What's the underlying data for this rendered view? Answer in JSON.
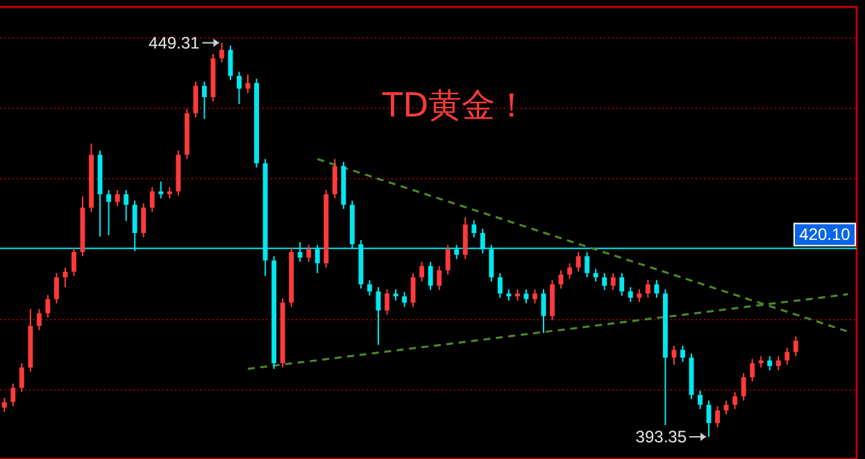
{
  "chart_data": {
    "type": "candlestick",
    "title": "TD黄金！",
    "categories": [
      null,
      null,
      null,
      null,
      null,
      null,
      null,
      null,
      null,
      null,
      null,
      null,
      null,
      null,
      null,
      null,
      null,
      null,
      null,
      null,
      null,
      null,
      null,
      null,
      null,
      null,
      null,
      null,
      null,
      null,
      null,
      null,
      null,
      null,
      null,
      null,
      null,
      null,
      null,
      null,
      null,
      null,
      null,
      null,
      null,
      null,
      null,
      null,
      null,
      null,
      null,
      null,
      null,
      null,
      null,
      null,
      null,
      null,
      null,
      null,
      null,
      null,
      null,
      null,
      null,
      null,
      null,
      null,
      null,
      null,
      null,
      null,
      null,
      null,
      null,
      null,
      null,
      null,
      null,
      null,
      null,
      null,
      null,
      null,
      null,
      null,
      null,
      null,
      null,
      null,
      null,
      null,
      null,
      null,
      null,
      null,
      null,
      null
    ],
    "ohlc": [
      [
        397.5,
        398.9,
        396.9,
        398.3
      ],
      [
        398.3,
        400.9,
        397.7,
        400.3
      ],
      [
        400.3,
        403.8,
        399.7,
        403.2
      ],
      [
        403.2,
        411.5,
        402.6,
        409.1
      ],
      [
        409.1,
        411.5,
        408.5,
        410.9
      ],
      [
        410.9,
        413.5,
        410.3,
        412.9
      ],
      [
        412.9,
        416.6,
        412.3,
        416.0
      ],
      [
        416.0,
        417.4,
        414.6,
        416.8
      ],
      [
        416.8,
        420.2,
        416.2,
        419.6
      ],
      [
        419.6,
        427.5,
        419.0,
        425.9
      ],
      [
        425.9,
        435.0,
        425.3,
        433.4
      ],
      [
        433.4,
        434.0,
        421.8,
        427.8
      ],
      [
        427.8,
        428.4,
        422.0,
        426.7
      ],
      [
        426.7,
        428.4,
        426.1,
        427.8
      ],
      [
        427.8,
        428.4,
        424.0,
        426.3
      ],
      [
        426.3,
        426.9,
        419.7,
        422.3
      ],
      [
        422.3,
        426.5,
        421.7,
        425.9
      ],
      [
        425.9,
        428.8,
        425.3,
        428.2
      ],
      [
        428.2,
        429.6,
        427.2,
        427.8
      ],
      [
        427.8,
        428.8,
        427.2,
        428.2
      ],
      [
        428.2,
        434.0,
        427.6,
        433.4
      ],
      [
        433.4,
        439.9,
        432.8,
        439.3
      ],
      [
        439.3,
        443.8,
        438.7,
        443.2
      ],
      [
        443.2,
        443.8,
        438.5,
        441.6
      ],
      [
        441.6,
        447.7,
        441.0,
        447.1
      ],
      [
        447.1,
        449.31,
        446.5,
        448.3
      ],
      [
        448.3,
        448.9,
        444.0,
        444.6
      ],
      [
        444.6,
        445.2,
        440.6,
        442.8
      ],
      [
        442.8,
        444.8,
        442.2,
        443.6
      ],
      [
        443.6,
        444.2,
        431.6,
        432.2
      ],
      [
        432.2,
        432.8,
        416.2,
        418.4
      ],
      [
        418.4,
        419.0,
        403.0,
        403.8
      ],
      [
        403.8,
        413.0,
        403.2,
        412.4
      ],
      [
        412.4,
        420.2,
        411.8,
        419.6
      ],
      [
        419.6,
        421.0,
        418.2,
        418.8
      ],
      [
        418.8,
        420.6,
        418.2,
        420.0
      ],
      [
        420.0,
        420.6,
        416.6,
        418.0
      ],
      [
        418.0,
        428.4,
        417.4,
        427.8
      ],
      [
        427.8,
        432.8,
        427.2,
        431.8
      ],
      [
        431.8,
        432.4,
        425.7,
        426.3
      ],
      [
        426.3,
        426.9,
        420.1,
        420.7
      ],
      [
        420.7,
        421.3,
        414.4,
        415.0
      ],
      [
        415.0,
        415.6,
        413.4,
        414.0
      ],
      [
        414.0,
        414.6,
        406.4,
        411.3
      ],
      [
        411.3,
        414.3,
        410.7,
        413.7
      ],
      [
        413.7,
        414.3,
        412.7,
        413.3
      ],
      [
        413.3,
        413.9,
        411.8,
        412.4
      ],
      [
        412.4,
        416.6,
        411.8,
        416.0
      ],
      [
        416.0,
        418.2,
        415.4,
        417.6
      ],
      [
        417.6,
        418.2,
        414.2,
        414.8
      ],
      [
        414.8,
        417.6,
        414.2,
        417.0
      ],
      [
        417.0,
        420.6,
        416.4,
        420.0
      ],
      [
        420.0,
        420.6,
        418.6,
        419.2
      ],
      [
        419.2,
        424.5,
        418.6,
        423.5
      ],
      [
        423.5,
        424.1,
        421.7,
        422.3
      ],
      [
        422.3,
        422.9,
        419.4,
        420.0
      ],
      [
        420.0,
        420.6,
        415.4,
        416.0
      ],
      [
        416.0,
        416.6,
        413.1,
        413.7
      ],
      [
        413.7,
        414.3,
        412.7,
        413.3
      ],
      [
        413.3,
        414.3,
        412.7,
        413.7
      ],
      [
        413.7,
        414.3,
        412.3,
        412.9
      ],
      [
        412.9,
        414.3,
        412.3,
        413.7
      ],
      [
        413.7,
        414.3,
        408.1,
        410.5
      ],
      [
        410.5,
        415.6,
        409.9,
        415.0
      ],
      [
        415.0,
        417.0,
        414.4,
        416.4
      ],
      [
        416.4,
        418.0,
        415.8,
        417.4
      ],
      [
        417.4,
        419.6,
        416.8,
        419.0
      ],
      [
        419.0,
        419.6,
        416.0,
        416.6
      ],
      [
        416.6,
        417.2,
        415.4,
        416.0
      ],
      [
        416.0,
        416.6,
        414.2,
        414.8
      ],
      [
        414.8,
        416.6,
        414.2,
        416.0
      ],
      [
        416.0,
        416.6,
        413.4,
        414.0
      ],
      [
        414.0,
        414.6,
        412.5,
        413.1
      ],
      [
        413.1,
        414.3,
        412.5,
        413.7
      ],
      [
        413.7,
        415.6,
        413.1,
        415.0
      ],
      [
        415.0,
        415.6,
        413.1,
        413.7
      ],
      [
        413.7,
        414.3,
        395.0,
        404.6
      ],
      [
        404.6,
        406.3,
        403.6,
        405.7
      ],
      [
        405.7,
        406.3,
        404.0,
        404.6
      ],
      [
        404.6,
        405.2,
        398.7,
        399.3
      ],
      [
        399.3,
        399.9,
        397.3,
        397.9
      ],
      [
        397.9,
        398.5,
        393.35,
        395.3
      ],
      [
        395.3,
        397.7,
        394.7,
        397.1
      ],
      [
        397.1,
        398.5,
        396.5,
        397.9
      ],
      [
        397.9,
        399.7,
        397.3,
        399.1
      ],
      [
        399.1,
        402.4,
        398.5,
        401.8
      ],
      [
        401.8,
        404.4,
        401.2,
        403.8
      ],
      [
        403.8,
        404.8,
        403.2,
        404.2
      ],
      [
        404.2,
        404.8,
        402.8,
        403.4
      ],
      [
        403.4,
        404.8,
        402.8,
        404.2
      ],
      [
        404.2,
        406.0,
        403.6,
        405.4
      ],
      [
        405.4,
        407.6,
        404.8,
        407.0
      ],
      null,
      null,
      null,
      null,
      null,
      null
    ],
    "colors": [
      "#ff3b3b",
      "#ff3b3b",
      "#ff3b3b",
      "#ff3b3b",
      "#ff3b3b",
      "#ff3b3b",
      "#ff3b3b",
      "#ff3b3b",
      "#ff3b3b",
      "#ff3b3b",
      "#ff3b3b",
      "#00e8f0",
      "#00e8f0",
      "#ff3b3b",
      "#00e8f0",
      "#00e8f0",
      "#ff3b3b",
      "#ff3b3b",
      "#00e8f0",
      "#ff3b3b",
      "#ff3b3b",
      "#ff3b3b",
      "#ff3b3b",
      "#00e8f0",
      "#ff3b3b",
      "#ff3b3b",
      "#00e8f0",
      "#00e8f0",
      "#ff3b3b",
      "#00e8f0",
      "#00e8f0",
      "#00e8f0",
      "#ff3b3b",
      "#ff3b3b",
      "#00e8f0",
      "#ff3b3b",
      "#00e8f0",
      "#ff3b3b",
      "#ff3b3b",
      "#00e8f0",
      "#00e8f0",
      "#00e8f0",
      "#00e8f0",
      "#00e8f0",
      "#ff3b3b",
      "#00e8f0",
      "#00e8f0",
      "#ff3b3b",
      "#ff3b3b",
      "#00e8f0",
      "#ff3b3b",
      "#ff3b3b",
      "#00e8f0",
      "#ff3b3b",
      "#00e8f0",
      "#00e8f0",
      "#00e8f0",
      "#00e8f0",
      "#00e8f0",
      "#ff3b3b",
      "#00e8f0",
      "#ff3b3b",
      "#00e8f0",
      "#ff3b3b",
      "#ff3b3b",
      "#ff3b3b",
      "#ff3b3b",
      "#00e8f0",
      "#00e8f0",
      "#00e8f0",
      "#ff3b3b",
      "#00e8f0",
      "#00e8f0",
      "#ff3b3b",
      "#ff3b3b",
      "#00e8f0",
      "#00e8f0",
      "#ff3b3b",
      "#00e8f0",
      "#00e8f0",
      "#00e8f0",
      "#00e8f0",
      "#ff3b3b",
      "#ff3b3b",
      "#ff3b3b",
      "#ff3b3b",
      "#ff3b3b",
      "#ff3b3b",
      "#00e8f0",
      "#ff3b3b",
      "#ff3b3b",
      "#ff3b3b",
      null,
      null,
      null,
      null,
      null,
      null
    ],
    "series": [
      {
        "type": "line",
        "color": "#4a8a2a",
        "line_style": "dashed",
        "values": [
          null,
          null,
          null,
          null,
          null,
          null,
          null,
          null,
          null,
          null,
          null,
          null,
          null,
          null,
          null,
          null,
          null,
          null,
          null,
          null,
          null,
          null,
          null,
          null,
          null,
          null,
          null,
          null,
          null,
          null,
          null,
          null,
          null,
          null,
          null,
          null,
          432.8,
          null,
          null,
          null,
          null,
          null,
          null,
          null,
          null,
          null,
          null,
          null,
          null,
          null,
          null,
          null,
          null,
          null,
          null,
          null,
          null,
          null,
          null,
          null,
          null,
          null,
          null,
          null,
          null,
          null,
          null,
          null,
          null,
          null,
          null,
          null,
          null,
          null,
          null,
          null,
          null,
          null,
          null,
          null,
          null,
          null,
          null,
          null,
          null,
          null,
          null,
          null,
          null,
          null,
          null,
          null,
          null,
          null,
          null,
          null,
          null,
          408.3
        ]
      },
      {
        "type": "line",
        "color": "#4a8a2a",
        "line_style": "dashed",
        "values": [
          null,
          null,
          null,
          null,
          null,
          null,
          null,
          null,
          null,
          null,
          null,
          null,
          null,
          null,
          null,
          null,
          null,
          null,
          null,
          null,
          null,
          null,
          null,
          null,
          null,
          null,
          null,
          null,
          403.0,
          null,
          null,
          null,
          null,
          null,
          null,
          null,
          null,
          null,
          null,
          null,
          null,
          null,
          null,
          null,
          null,
          null,
          null,
          null,
          null,
          null,
          null,
          null,
          null,
          null,
          null,
          null,
          null,
          null,
          null,
          null,
          null,
          null,
          null,
          null,
          null,
          null,
          null,
          null,
          null,
          null,
          null,
          null,
          null,
          null,
          null,
          null,
          null,
          null,
          null,
          null,
          null,
          null,
          null,
          null,
          null,
          null,
          null,
          null,
          null,
          null,
          null,
          null,
          null,
          null,
          null,
          null,
          null,
          413.6
        ]
      }
    ],
    "ylim": [
      390.2,
      454.4
    ],
    "yticks": [
      {
        "value": 400,
        "label": null
      },
      {
        "value": 410,
        "label": null
      },
      {
        "value": 430,
        "label": null
      },
      {
        "value": 440,
        "label": null
      },
      {
        "value": 450,
        "label": null
      }
    ],
    "grid": "y",
    "ref_lines": [
      {
        "axis": "y",
        "value": 420.1,
        "label": "420.10",
        "color": "#00e8f0"
      }
    ],
    "annotations": [
      "449.31",
      "393.35"
    ]
  }
}
